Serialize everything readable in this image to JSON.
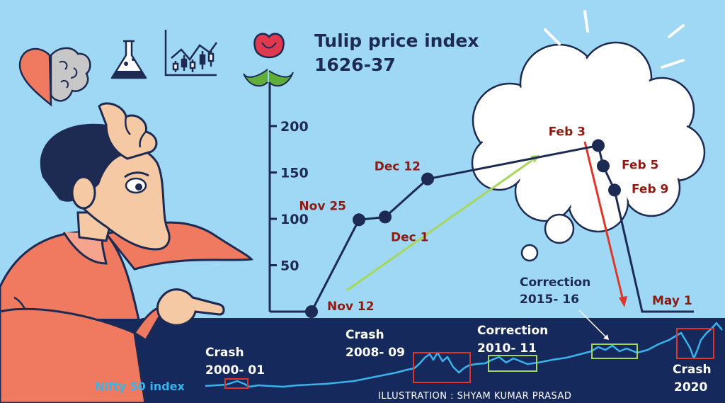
{
  "title": {
    "line1": "Tulip price index",
    "line2": "1626-37"
  },
  "chart_data": [
    {
      "type": "line",
      "title": "Tulip price index 1626-37",
      "y_ticks": [
        50,
        100,
        150,
        200
      ],
      "ylim": [
        0,
        220
      ],
      "points": [
        {
          "label": "Nov 12",
          "value": 0
        },
        {
          "label": "Nov 25",
          "value": 99
        },
        {
          "label": "Dec 1",
          "value": 102
        },
        {
          "label": "Dec 12",
          "value": 143
        },
        {
          "label": "Feb 3",
          "value": 179
        },
        {
          "label": "Feb 5",
          "value": 157
        },
        {
          "label": "Feb 9",
          "value": 131
        },
        {
          "label": "May 1",
          "value": 0
        }
      ]
    },
    {
      "type": "line",
      "series_label": "Nifty 50 index",
      "annotations": [
        {
          "label": "Crash 2000- 01",
          "line1": "Crash",
          "line2": "2000- 01"
        },
        {
          "label": "Crash 2008- 09",
          "line1": "Crash",
          "line2": "2008- 09"
        },
        {
          "label": "Correction 2010- 11",
          "line1": "Correction",
          "line2": "2010- 11"
        },
        {
          "label": "Correction 2015- 16",
          "line1": "Correction",
          "line2": "2015- 16"
        },
        {
          "label": "Crash 2020",
          "line1": "Crash",
          "line2": "2020"
        }
      ]
    }
  ],
  "credit": "ILLUSTRATION : SHYAM KUMAR PRASAD",
  "icons": [
    "heart-brain-icon",
    "flask-icon",
    "candlestick-chart-icon",
    "tulip-icon"
  ],
  "colors": {
    "sky": "#9ed8f5",
    "navy": "#1d2a52",
    "band": "#15295c",
    "date_red": "#8e1b12",
    "nifty_blue": "#38b3ec",
    "arrow_green": "#a6d75b",
    "arrow_red": "#e0352a",
    "box_red": "#e0352a",
    "box_green": "#a6d75b",
    "shirt": "#f07a5f"
  }
}
